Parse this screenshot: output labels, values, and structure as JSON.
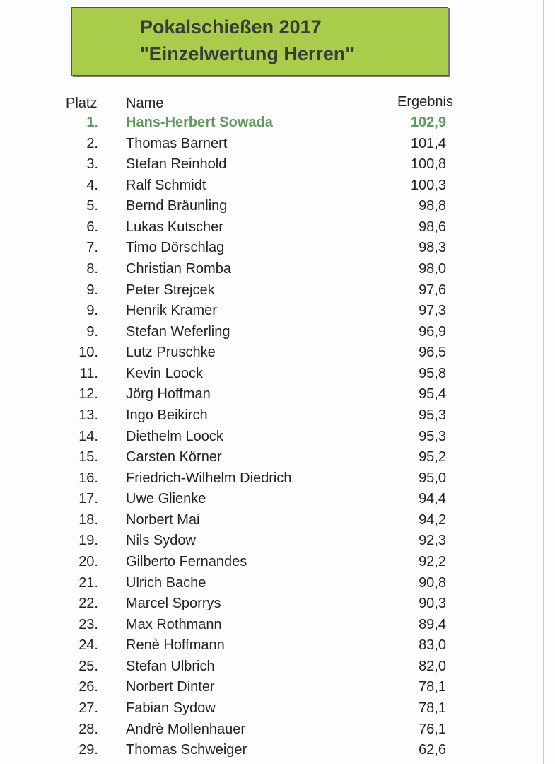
{
  "title": {
    "line1": "Pokalschießen 2017",
    "line2": "\"Einzelwertung Herren\""
  },
  "table": {
    "columns": [
      "Platz",
      "Name",
      "Ergebnis"
    ],
    "rows": [
      [
        "1.",
        "Hans-Herbert Sowada",
        "102,9"
      ],
      [
        "2.",
        "Thomas Barnert",
        "101,4"
      ],
      [
        "3.",
        "Stefan Reinhold",
        "100,8"
      ],
      [
        "4.",
        "Ralf Schmidt",
        "100,3"
      ],
      [
        "5.",
        "Bernd Bräunling",
        "98,8"
      ],
      [
        "6.",
        "Lukas Kutscher",
        "98,6"
      ],
      [
        "7.",
        "Timo Dörschlag",
        "98,3"
      ],
      [
        "8.",
        "Christian Romba",
        "98,0"
      ],
      [
        "9.",
        "Peter Strejcek",
        "97,6"
      ],
      [
        "9.",
        "Henrik Kramer",
        "97,3"
      ],
      [
        "9.",
        "Stefan Weferling",
        "96,9"
      ],
      [
        "10.",
        "Lutz Pruschke",
        "96,5"
      ],
      [
        "11.",
        "Kevin Loock",
        "95,8"
      ],
      [
        "12.",
        "Jörg Hoffman",
        "95,4"
      ],
      [
        "13.",
        "Ingo Beikirch",
        "95,3"
      ],
      [
        "14.",
        "Diethelm Loock",
        "95,3"
      ],
      [
        "15.",
        "Carsten Körner",
        "95,2"
      ],
      [
        "16.",
        "Friedrich-Wilhelm Diedrich",
        "95,0"
      ],
      [
        "17.",
        "Uwe Glienke",
        "94,4"
      ],
      [
        "18.",
        "Norbert Mai",
        "94,2"
      ],
      [
        "19.",
        "Nils Sydow",
        "92,3"
      ],
      [
        "20.",
        "Gilberto Fernandes",
        "92,2"
      ],
      [
        "21.",
        "Ulrich Bache",
        "90,8"
      ],
      [
        "22.",
        "Marcel Sporrys",
        "90,3"
      ],
      [
        "23.",
        "Max Rothmann",
        "89,4"
      ],
      [
        "24.",
        "Renè Hoffmann",
        "83,0"
      ],
      [
        "25.",
        "Stefan Ulbrich",
        "82,0"
      ],
      [
        "26.",
        "Norbert Dinter",
        "78,1"
      ],
      [
        "27.",
        "Fabian Sydow",
        "78,1"
      ],
      [
        "28.",
        "Andrè Mollenhauer",
        "76,1"
      ],
      [
        "29.",
        "Thomas Schweiger",
        "62,6"
      ]
    ]
  }
}
